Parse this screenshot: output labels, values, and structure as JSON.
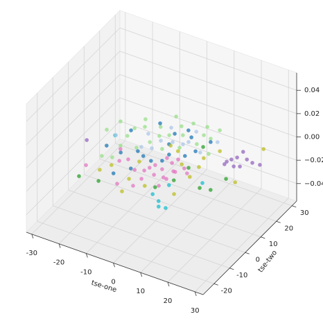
{
  "chart_data": {
    "type": "scatter3d",
    "xlabel": "tse-one",
    "ylabel": "tse-two",
    "xlim": [
      -32,
      33
    ],
    "ylim": [
      -27,
      33
    ],
    "zlim": [
      -0.055,
      0.055
    ],
    "xticks": [
      -30,
      -20,
      -10,
      0,
      10,
      20,
      30
    ],
    "yticks": [
      -20,
      -10,
      0,
      10,
      20,
      30
    ],
    "zticks": [
      {
        "value": -0.04,
        "label": "−0.04"
      },
      {
        "value": -0.02,
        "label": "−0.02"
      },
      {
        "value": 0,
        "label": "0.00"
      },
      0.02,
      0.04
    ],
    "grid": true,
    "series": [
      {
        "color": "#9467bd",
        "x": [
          20.8,
          21.4,
          22.4,
          22.5,
          25.6,
          25.6,
          23.9,
          20.7,
          30.6,
          28.0,
          -23.2
        ],
        "y": [
          8.0,
          11.4,
          13.3,
          17.0,
          14.0,
          9.5,
          8.5,
          9.6,
          13.6,
          13.3,
          -3.6
        ],
        "z": [
          0,
          0,
          0,
          0,
          0,
          0,
          0,
          0,
          0,
          0,
          0
        ]
      },
      {
        "color": "#17becf",
        "x": [
          12.9,
          16.7,
          14.4,
          9.4,
          -16.8,
          19.9,
          11.4
        ],
        "y": [
          -20.5,
          -22.6,
          -23.1,
          -18.2,
          3.4,
          -4.6,
          -11.2
        ],
        "z": [
          0,
          0,
          0,
          0,
          0,
          0,
          0
        ]
      },
      {
        "color": "#2ca02c",
        "x": [
          -15.5,
          -8.9,
          24.0,
          20.5,
          25.2,
          8.2,
          12.0,
          10.3,
          11.4
        ],
        "y": [
          -22.0,
          -21.0,
          -6.5,
          -7.4,
          1.3,
          -14.5,
          0.3,
          12.6,
          -8.1
        ],
        "z": [
          0,
          0,
          0,
          0,
          0,
          0,
          0,
          0,
          0
        ]
      },
      {
        "color": "#98df8a",
        "x": [
          -20.6,
          -19.1,
          -12.9,
          -5.3,
          1.3,
          6.0,
          10.3,
          -2.1,
          1.6,
          7.8,
          10.1,
          13.7,
          4.1,
          -0.3,
          -11.0,
          -13.4,
          -13.3,
          -6.7,
          -5.5,
          -7.6,
          -12.5,
          -11.6,
          -14.8,
          7.3,
          -1.2,
          -4.6
        ],
        "y": [
          4.7,
          10.9,
          16.1,
          22.5,
          22.1,
          22.8,
          23.3,
          12.5,
          14.8,
          12.9,
          17.8,
          10.2,
          8.3,
          4.8,
          12.4,
          10.0,
          5.2,
          15.0,
          6.0,
          1.1,
          -0.6,
          -7.5,
          -8.6,
          18.3,
          18.8,
          10.5
        ],
        "z": [
          0,
          0,
          0,
          0,
          0,
          0,
          0,
          0,
          0,
          0,
          0,
          0,
          0,
          0,
          0,
          0,
          0,
          0,
          0,
          0,
          0,
          0,
          0,
          0,
          0,
          0
        ]
      },
      {
        "color": "#1f77b4",
        "x": [
          -16.3,
          -13.8,
          -10.6,
          -6.9,
          -3.5,
          -3.5,
          -7.8,
          0.3,
          -1.0,
          1.8,
          4.5,
          9.4,
          7.8,
          2.9,
          -0.1,
          -6.3,
          3.1,
          11.0
        ],
        "y": [
          -2.9,
          8.4,
          -3.8,
          -14.9,
          -9.7,
          -1.7,
          16.6,
          8.2,
          14.1,
          18.0,
          15.2,
          9.3,
          5.3,
          -0.8,
          -2.7,
          -0.3,
          3.3,
          16.2
        ],
        "z": [
          0,
          0,
          0,
          0,
          0,
          0,
          0,
          0,
          0,
          0,
          0,
          0,
          0,
          0,
          0,
          0,
          0,
          0
        ]
      },
      {
        "color": "#aec7e8",
        "x": [
          -16.6,
          -8.2,
          -3.6,
          -2.9,
          0.7,
          4.1,
          5.0,
          4.3,
          -6.5,
          -3.3,
          11.0,
          12.9
        ],
        "y": [
          3.6,
          9.7,
          16.4,
          8.5,
          9.8,
          10.5,
          12.5,
          18.7,
          2.3,
          3.4,
          9.5,
          17.3
        ],
        "z": [
          0,
          0,
          0,
          0,
          0,
          0,
          0,
          0,
          0,
          0,
          0,
          0
        ]
      },
      {
        "color": "#e377c2",
        "x": [
          -16.6,
          -11.6,
          -6.7,
          -2.1,
          0.7,
          1.4,
          2.2,
          5.2,
          3.5,
          6.2,
          6.9,
          11.0,
          13.1,
          7.8,
          4.5,
          8.8,
          9.0,
          9.5,
          1.8,
          -3.1,
          2.2,
          -8.7,
          8.8
        ],
        "y": [
          -15.6,
          -2.2,
          -5.8,
          -9.7,
          -8.4,
          -6.2,
          -4.0,
          -4.8,
          1.3,
          -0.2,
          2.5,
          -0.7,
          -2.6,
          -8.5,
          -8.8,
          -13.2,
          -8.7,
          -3.9,
          -17.5,
          -19.2,
          -12.8,
          -8.0,
          -3.9
        ],
        "z": [
          0,
          0,
          0,
          0,
          0,
          0,
          0,
          0,
          0,
          0,
          0,
          0,
          0,
          0,
          0,
          0,
          0,
          0,
          0,
          0,
          0,
          0,
          0
        ]
      },
      {
        "color": "#bcbd22",
        "x": [
          -11.6,
          -9.7,
          -1.2,
          5.0,
          0.3,
          1.1,
          4.6,
          9.2,
          14.8,
          14.6,
          13.5,
          15.2,
          28.6,
          27.3,
          16.0,
          -3.1
        ],
        "y": [
          -15.5,
          -11.3,
          -14.9,
          -15.6,
          -22.0,
          7.8,
          6.4,
          0.8,
          -3.8,
          2.4,
          7.4,
          -14.6,
          1.2,
          21.7,
          13.4,
          -5.0
        ],
        "z": [
          0,
          0,
          0,
          0,
          0,
          0,
          0,
          0,
          0,
          0,
          0,
          0,
          0,
          0,
          0,
          0
        ]
      }
    ]
  }
}
